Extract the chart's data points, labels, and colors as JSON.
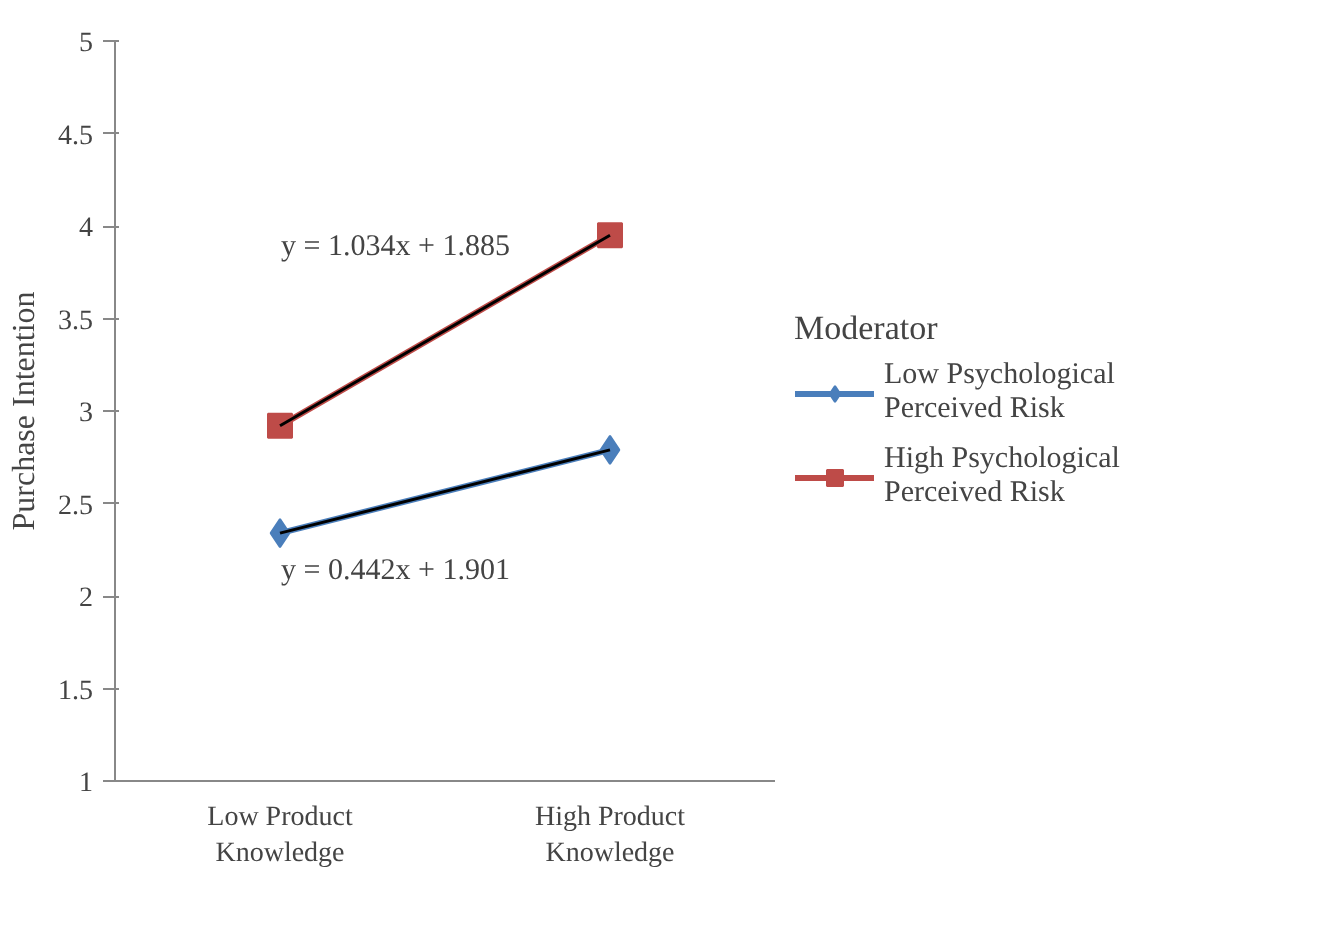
{
  "chart_data": {
    "type": "line",
    "ylabel": "Purchase Intention",
    "legend_title": "Moderator",
    "categories": [
      "Low Product\nKnowledge",
      "High Product\nKnowledge"
    ],
    "series": [
      {
        "name": "Low Psychological\nPerceived Risk",
        "color": "#4a7ebb",
        "marker": "diamond",
        "values": [
          2.34,
          2.79
        ]
      },
      {
        "name": "High Psychological\nPerceived Risk",
        "color": "#be4b48",
        "marker": "square",
        "values": [
          2.92,
          3.95
        ]
      },
      {
        "type": "line",
        "color": "#000000",
        "marker": "none",
        "values": [
          2.34,
          2.79
        ]
      },
      {
        "type": "line",
        "color": "#000000",
        "marker": "none",
        "values": [
          2.92,
          3.95
        ]
      }
    ],
    "annotations": [
      "y = 1.034x + 1.885",
      "y = 0.442x + 1.901"
    ],
    "ylim": [
      1,
      5
    ],
    "yticks": [
      1,
      1.5,
      2,
      2.5,
      3,
      3.5,
      4,
      4.5,
      5
    ],
    "grid": false,
    "legend": "right"
  }
}
